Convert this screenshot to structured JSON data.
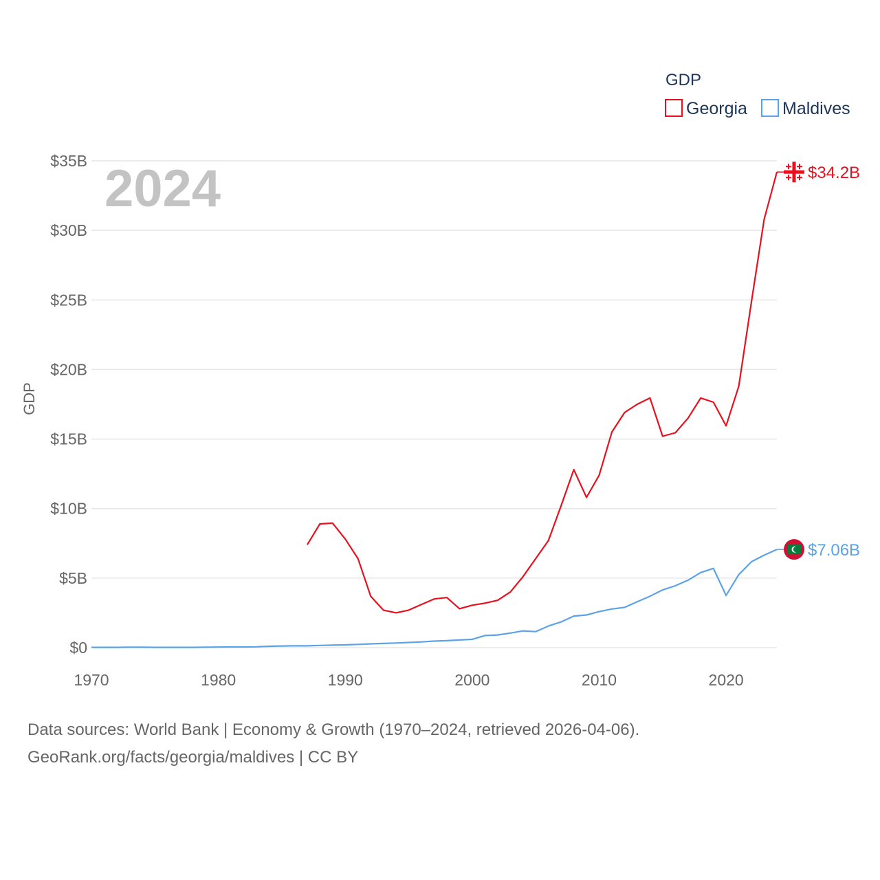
{
  "chart_data": {
    "type": "line",
    "title": "GDP",
    "year_label": "2024",
    "ylabel": "GDP",
    "xlabel": "",
    "xlim": [
      1970,
      2024
    ],
    "ylim": [
      0,
      35
    ],
    "x_ticks": [
      1970,
      1980,
      1990,
      2000,
      2010,
      2020
    ],
    "x_tick_labels": [
      "1970",
      "1980",
      "1990",
      "2000",
      "2010",
      "2020"
    ],
    "y_ticks": [
      0,
      5,
      10,
      15,
      20,
      25,
      30,
      35
    ],
    "y_tick_labels": [
      "$0",
      "$5B",
      "$10B",
      "$15B",
      "$20B",
      "$25B",
      "$30B",
      "$35B"
    ],
    "grid": true,
    "legend_position": "top-right",
    "series": [
      {
        "name": "Georgia",
        "color": "#e8101e",
        "end_label": "$34.2B",
        "flag": "georgia-flag",
        "x": [
          1987,
          1988,
          1989,
          1990,
          1991,
          1992,
          1993,
          1994,
          1995,
          1996,
          1997,
          1998,
          1999,
          2000,
          2001,
          2002,
          2003,
          2004,
          2005,
          2006,
          2007,
          2008,
          2009,
          2010,
          2011,
          2012,
          2013,
          2014,
          2015,
          2016,
          2017,
          2018,
          2019,
          2020,
          2021,
          2022,
          2023,
          2024
        ],
        "values": [
          7.4,
          8.9,
          8.95,
          7.8,
          6.4,
          3.7,
          2.7,
          2.5,
          2.7,
          3.1,
          3.5,
          3.6,
          2.8,
          3.05,
          3.2,
          3.4,
          4.0,
          5.1,
          6.4,
          7.7,
          10.2,
          12.8,
          10.8,
          12.4,
          15.5,
          16.9,
          17.5,
          17.95,
          15.2,
          15.45,
          16.5,
          17.95,
          17.65,
          15.95,
          18.8,
          24.9,
          30.8,
          34.2
        ]
      },
      {
        "name": "Maldives",
        "color": "#5ba3e6",
        "end_label": "$7.06B",
        "flag": "maldives-flag",
        "x": [
          1970,
          1971,
          1972,
          1973,
          1974,
          1975,
          1976,
          1977,
          1978,
          1979,
          1980,
          1981,
          1982,
          1983,
          1984,
          1985,
          1986,
          1987,
          1988,
          1989,
          1990,
          1991,
          1992,
          1993,
          1994,
          1995,
          1996,
          1997,
          1998,
          1999,
          2000,
          2001,
          2002,
          2003,
          2004,
          2005,
          2006,
          2007,
          2008,
          2009,
          2010,
          2011,
          2012,
          2013,
          2014,
          2015,
          2016,
          2017,
          2018,
          2019,
          2020,
          2021,
          2022,
          2023,
          2024
        ],
        "values": [
          0.02,
          0.02,
          0.02,
          0.03,
          0.03,
          0.02,
          0.02,
          0.02,
          0.02,
          0.03,
          0.04,
          0.05,
          0.05,
          0.06,
          0.1,
          0.12,
          0.13,
          0.13,
          0.16,
          0.18,
          0.2,
          0.23,
          0.27,
          0.3,
          0.33,
          0.37,
          0.41,
          0.47,
          0.5,
          0.55,
          0.6,
          0.87,
          0.91,
          1.05,
          1.2,
          1.15,
          1.55,
          1.85,
          2.27,
          2.35,
          2.59,
          2.78,
          2.89,
          3.3,
          3.7,
          4.15,
          4.45,
          4.85,
          5.4,
          5.7,
          3.75,
          5.25,
          6.18,
          6.65,
          7.06
        ]
      }
    ]
  },
  "footer": {
    "line1": "Data sources: World Bank | Economy & Growth (1970–2024, retrieved 2026-04-06).",
    "line2": "GeoRank.org/facts/georgia/maldives | CC BY"
  }
}
